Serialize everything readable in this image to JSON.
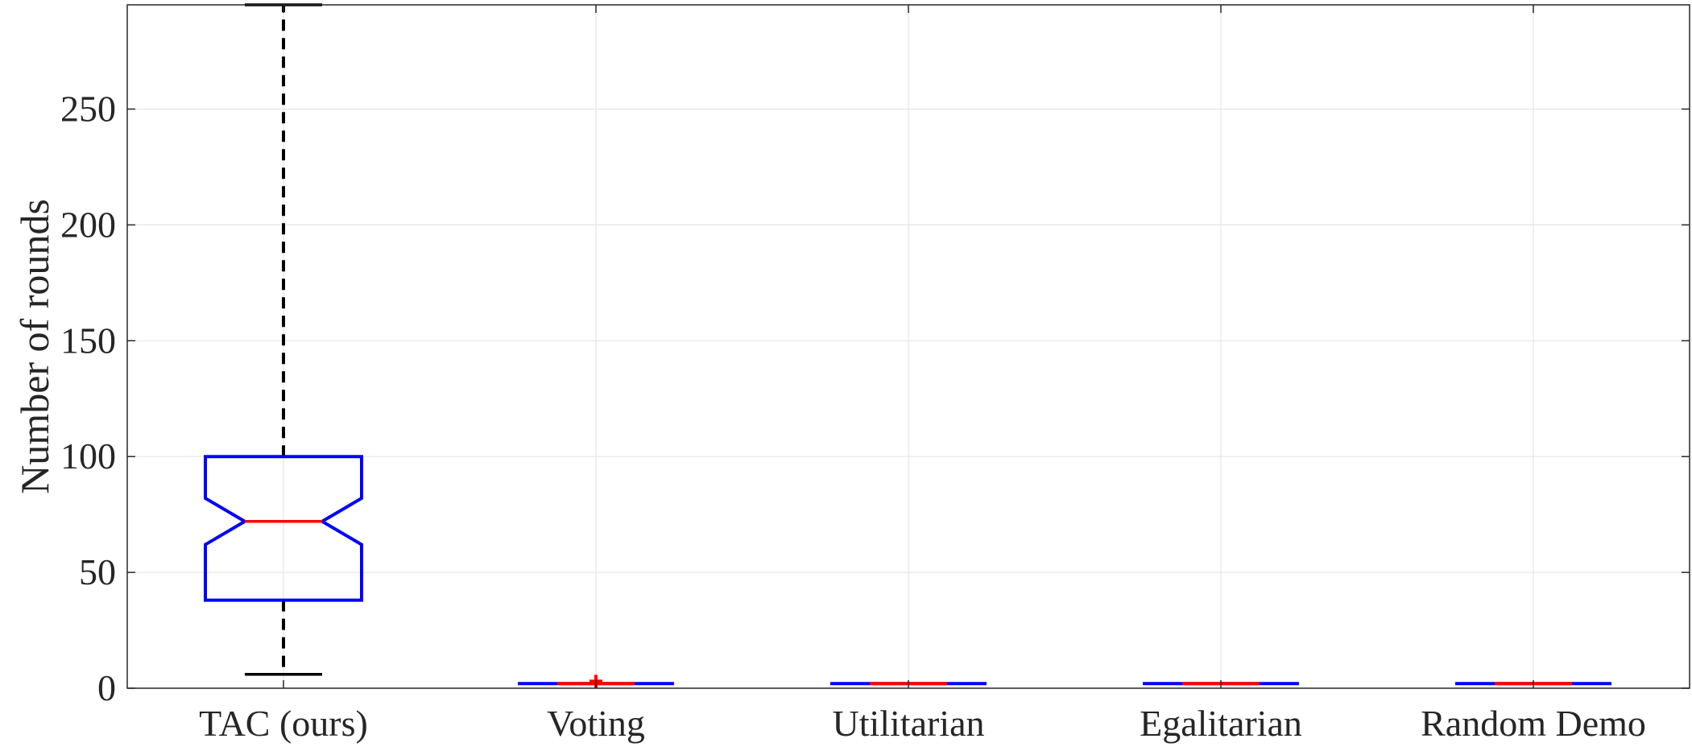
{
  "chart_data": {
    "type": "boxplot",
    "ylabel": "Number of rounds",
    "xlabel": "",
    "title": "",
    "categories": [
      "TAC (ours)",
      "Voting",
      "Utilitarian",
      "Egalitarian",
      "Random Demo"
    ],
    "ylim": [
      0,
      295
    ],
    "yticks": [
      0,
      50,
      100,
      150,
      200,
      250
    ],
    "grid": true,
    "notched": true,
    "boxes": [
      {
        "category": "TAC (ours)",
        "whisker_low": 6,
        "q1": 38,
        "notch_low": 62,
        "median": 72,
        "notch_high": 82,
        "q3": 100,
        "whisker_high": 295,
        "outliers": []
      },
      {
        "category": "Voting",
        "whisker_low": 2,
        "q1": 2,
        "notch_low": 2,
        "median": 2,
        "notch_high": 2,
        "q3": 2,
        "whisker_high": 2,
        "outliers": [
          3
        ]
      },
      {
        "category": "Utilitarian",
        "whisker_low": 2,
        "q1": 2,
        "notch_low": 2,
        "median": 2,
        "notch_high": 2,
        "q3": 2,
        "whisker_high": 2,
        "outliers": []
      },
      {
        "category": "Egalitarian",
        "whisker_low": 2,
        "q1": 2,
        "notch_low": 2,
        "median": 2,
        "notch_high": 2,
        "q3": 2,
        "whisker_high": 2,
        "outliers": []
      },
      {
        "category": "Random Demo",
        "whisker_low": 2,
        "q1": 2,
        "notch_low": 2,
        "median": 2,
        "notch_high": 2,
        "q3": 2,
        "whisker_high": 2,
        "outliers": []
      }
    ],
    "colors": {
      "box": "#0000ff",
      "median": "#ff0000",
      "whisker": "#000000",
      "outlier": "#ff0000",
      "grid": "#e6e6e6",
      "axis": "#262626"
    }
  }
}
